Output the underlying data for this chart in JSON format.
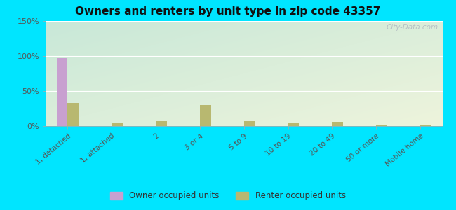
{
  "title": "Owners and renters by unit type in zip code 43357",
  "categories": [
    "1, detached",
    "1, attached",
    "2",
    "3 or 4",
    "5 to 9",
    "10 to 19",
    "20 to 49",
    "50 or more",
    "Mobile home"
  ],
  "owner_values": [
    97,
    0,
    0,
    0,
    0,
    0,
    0,
    0,
    0
  ],
  "renter_values": [
    33,
    5,
    7,
    30,
    7,
    5,
    6,
    1,
    1
  ],
  "owner_color": "#c8a0d0",
  "renter_color": "#b8b870",
  "ylim": [
    0,
    150
  ],
  "yticks": [
    0,
    50,
    100,
    150
  ],
  "ytick_labels": [
    "0%",
    "50%",
    "100%",
    "150%"
  ],
  "background_color_topleft": "#c8e8d8",
  "background_color_bottomright": "#eef4dc",
  "fig_bg": "#00e5ff",
  "bar_width": 0.25,
  "watermark": "City-Data.com",
  "legend_owner": "Owner occupied units",
  "legend_renter": "Renter occupied units"
}
